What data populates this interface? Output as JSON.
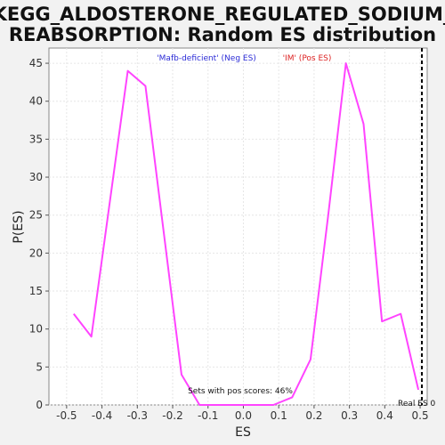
{
  "colors": {
    "background": "#f2f2f2",
    "plot_background": "#ffffff",
    "series": "#ff44ff",
    "neg_legend": "#2b2bd6",
    "pos_legend": "#dd2222",
    "real_es_line": "#000000",
    "grid": "#e6e6e6"
  },
  "chart_data": {
    "type": "line",
    "title_line1": "KEGG_ALDOSTERONE_REGULATED_SODIUM_",
    "title_line2": "REABSORPTION: Random ES distribution",
    "xlabel": "ES",
    "ylabel": "P(ES)",
    "xlim": [
      -0.55,
      0.52
    ],
    "ylim": [
      0,
      47
    ],
    "xticks": [
      -0.5,
      -0.4,
      -0.3,
      -0.2,
      -0.1,
      0.0,
      0.1,
      0.2,
      0.3,
      0.4,
      0.5
    ],
    "xtick_labels": [
      "-0.5",
      "-0.4",
      "-0.3",
      "-0.2",
      "-0.1",
      "0.0",
      "0.1",
      "0.2",
      "0.3",
      "0.4",
      "0.5"
    ],
    "yticks": [
      0,
      5,
      10,
      15,
      20,
      25,
      30,
      35,
      40,
      45
    ],
    "ytick_labels": [
      "0",
      "5",
      "10",
      "15",
      "20",
      "25",
      "30",
      "35",
      "40",
      "45"
    ],
    "grid": true,
    "series": [
      {
        "x": [
          -0.48,
          -0.43,
          -0.327,
          -0.277,
          -0.175,
          -0.124,
          -0.073,
          -0.02,
          0.03,
          0.085,
          0.138,
          0.19,
          0.24,
          0.29,
          0.34,
          0.392,
          0.445,
          0.495
        ],
        "y": [
          12,
          9,
          44,
          42,
          4,
          0,
          0,
          0,
          0,
          0,
          1,
          6,
          25,
          45,
          37,
          11,
          12,
          2
        ]
      }
    ],
    "legend": {
      "placement": "top-center",
      "neg_label": "'Mafb-deficient' (Neg ES)",
      "pos_label": "'IM' (Pos ES)"
    },
    "real_es": 0.505,
    "annotations": {
      "pos_scores": "Sets with pos scores: 46%",
      "real_es_label": "Real ES 0"
    }
  }
}
